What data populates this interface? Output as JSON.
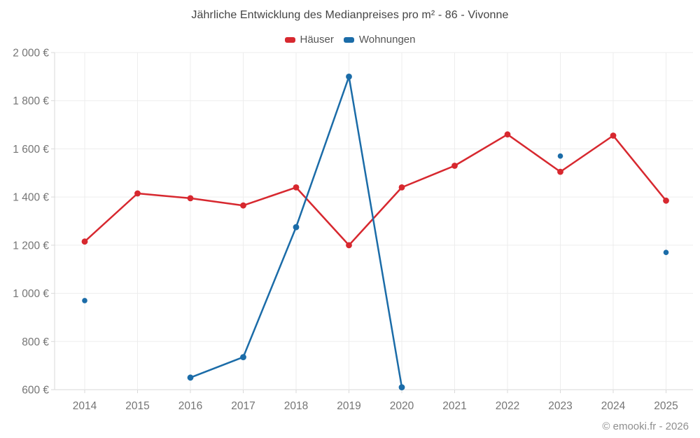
{
  "chart": {
    "title": "Jährliche Entwicklung des Medianpreises pro m² - 86 - Vivonne"
  },
  "legend": {
    "items": [
      {
        "label": "Häuser",
        "slug": "haeuser",
        "color": "#d7282f"
      },
      {
        "label": "Wohnungen",
        "slug": "wohnungen",
        "color": "#1b6ca8"
      }
    ]
  },
  "chart_data": {
    "type": "line",
    "title": "Jährliche Entwicklung des Medianpreises pro m² - 86 - Vivonne",
    "categories": [
      "2014",
      "2015",
      "2016",
      "2017",
      "2018",
      "2019",
      "2020",
      "2021",
      "2022",
      "2023",
      "2024",
      "2025"
    ],
    "series": [
      {
        "name": "Häuser",
        "slug": "haeuser",
        "color": "#d7282f",
        "values": [
          1215,
          1415,
          1395,
          1365,
          1440,
          1200,
          1440,
          1530,
          1660,
          1505,
          1655,
          1385
        ]
      },
      {
        "name": "Wohnungen",
        "slug": "wohnungen",
        "color": "#1b6ca8",
        "values": [
          970,
          null,
          650,
          735,
          1275,
          1900,
          610,
          null,
          null,
          1570,
          null,
          1170
        ]
      }
    ],
    "xlabel": "",
    "ylabel": "",
    "ylim": [
      600,
      2000
    ],
    "ytick_step": 200,
    "yticks": [
      {
        "value": 600,
        "label": "600 €"
      },
      {
        "value": 800,
        "label": "800 €"
      },
      {
        "value": 1000,
        "label": "1 000 €"
      },
      {
        "value": 1200,
        "label": "1 200 €"
      },
      {
        "value": 1400,
        "label": "1 400 €"
      },
      {
        "value": 1600,
        "label": "1 600 €"
      },
      {
        "value": 1800,
        "label": "1 800 €"
      },
      {
        "value": 2000,
        "label": "2 000 €"
      }
    ],
    "grid": true,
    "legend_position": "top",
    "colors": {
      "grid": "#ededed",
      "axis": "#d9d9d9",
      "tick_label": "#757575",
      "title_text": "#444444",
      "footer_text": "#8f8f8f"
    }
  },
  "footer": {
    "credit": "© emooki.fr - 2026"
  }
}
